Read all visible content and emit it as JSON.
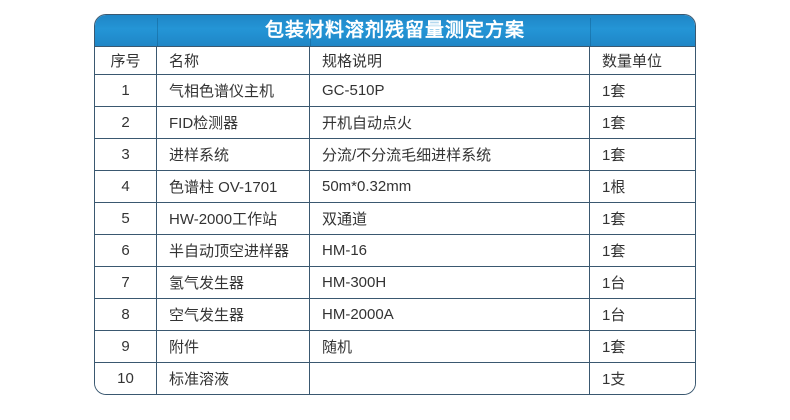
{
  "title": "包装材料溶剂残留量测定方案",
  "colors": {
    "title_bar_blue": "#2191d0",
    "grid_border": "#3a5870",
    "title_text": "#ffffff",
    "body_text": "#333333",
    "page_background": "#ffffff"
  },
  "table": {
    "headers": [
      "序号",
      "名称",
      "规格说明",
      "数量单位"
    ],
    "rows": [
      [
        "1",
        "气相色谱仪主机",
        "GC-510P",
        "1套"
      ],
      [
        "2",
        "FID检测器",
        "开机自动点火",
        "1套"
      ],
      [
        "3",
        "进样系统",
        "分流/不分流毛细进样系统",
        "1套"
      ],
      [
        "4",
        "色谱柱 OV-1701",
        "50m*0.32mm",
        "1根"
      ],
      [
        "5",
        "HW-2000工作站",
        "双通道",
        "1套"
      ],
      [
        "6",
        "半自动顶空进样器",
        "HM-16",
        "1套"
      ],
      [
        "7",
        "氢气发生器",
        "HM-300H",
        "1台"
      ],
      [
        "8",
        "空气发生器",
        "HM-2000A",
        "1台"
      ],
      [
        "9",
        "附件",
        "随机",
        "1套"
      ],
      [
        "10",
        "标准溶液",
        "",
        "1支"
      ]
    ]
  }
}
